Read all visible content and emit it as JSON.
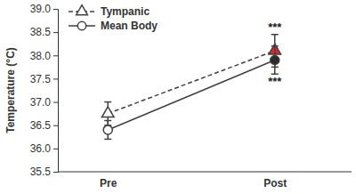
{
  "chart_data": {
    "type": "line",
    "y_label": "Temperature (°C)",
    "categories": [
      "Pre",
      "Post"
    ],
    "series": [
      {
        "name": "Tympanic",
        "color": "#404040",
        "colors": [
          "#ffffff",
          "#e3262b"
        ],
        "marker": "triangle",
        "line_style": "dashed",
        "values": [
          36.75,
          38.1
        ],
        "errors": [
          0.25,
          0.35
        ],
        "annotations": [
          null,
          "***"
        ]
      },
      {
        "name": "Mean Body",
        "color": "#404040",
        "colors": [
          "#ffffff",
          "#2b2b2b"
        ],
        "marker": "circle",
        "line_style": "solid",
        "values": [
          36.4,
          37.9
        ],
        "errors": [
          0.2,
          0.3
        ],
        "annotations": [
          null,
          "***"
        ]
      }
    ],
    "ylim": [
      35.5,
      39.0
    ],
    "yticks": [
      35.5,
      {
        "value": 36.0,
        "label": "36.0"
      },
      36.5,
      {
        "value": 37.0,
        "label": "37.0"
      },
      37.5,
      {
        "value": 38.0,
        "label": "38.0"
      },
      38.5,
      {
        "value": 39.0,
        "label": "39.0"
      }
    ],
    "grid": false,
    "legend": "top-left"
  }
}
